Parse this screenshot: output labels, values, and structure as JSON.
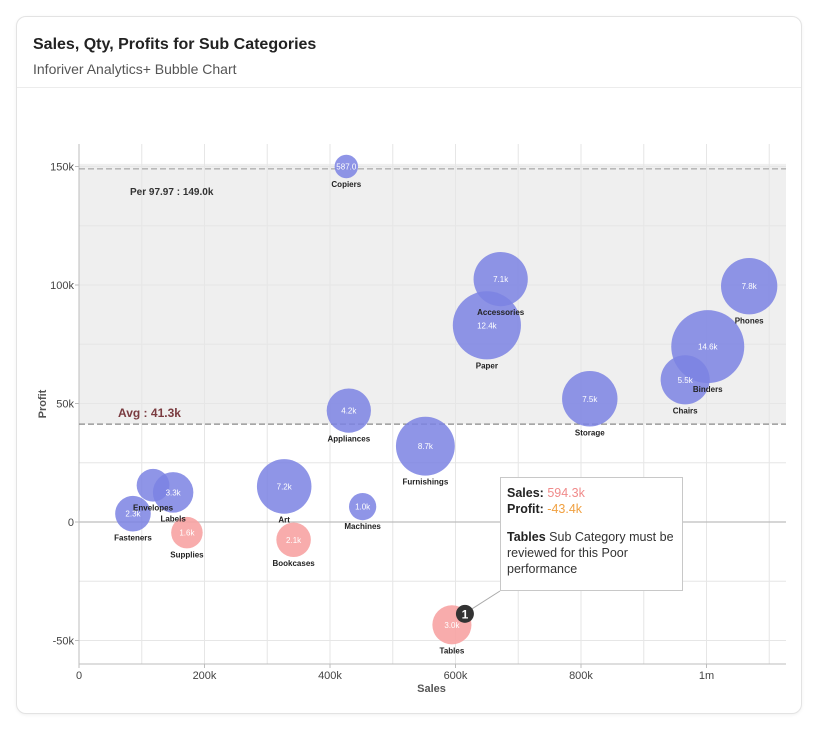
{
  "header": {
    "title": "Sales, Qty, Profits for Sub Categories",
    "subtitle": "Inforiver Analytics+ Bubble Chart"
  },
  "chart_data": {
    "type": "scatter",
    "xlabel": "Sales",
    "ylabel": "Profit",
    "xlim": [
      0,
      1125000
    ],
    "ylim": [
      -60000,
      160000
    ],
    "x_ticks": [
      {
        "value": 0,
        "label": "0"
      },
      {
        "value": 200000,
        "label": "200k"
      },
      {
        "value": 400000,
        "label": "400k"
      },
      {
        "value": 600000,
        "label": "600k"
      },
      {
        "value": 800000,
        "label": "800k"
      },
      {
        "value": 1000000,
        "label": "1m"
      }
    ],
    "y_ticks": [
      {
        "value": -50000,
        "label": "-50k"
      },
      {
        "value": 0,
        "label": "0"
      },
      {
        "value": 50000,
        "label": "50k"
      },
      {
        "value": 100000,
        "label": "100k"
      },
      {
        "value": 150000,
        "label": "150k"
      }
    ],
    "colors": {
      "positive": "#7b82e3",
      "negative": "#f7a3a3",
      "negative_label": "#e0242c",
      "band": "#efefef"
    },
    "points": [
      {
        "name": "Copiers",
        "sales": 426000,
        "profit": 150000,
        "size_label": "587.0",
        "qty": 587
      },
      {
        "name": "Accessories",
        "sales": 672000,
        "profit": 102500,
        "size_label": "7.1k",
        "qty": 7100
      },
      {
        "name": "Phones",
        "sales": 1068000,
        "profit": 99500,
        "size_label": "7.8k",
        "qty": 7800
      },
      {
        "name": "Paper",
        "sales": 650000,
        "profit": 83000,
        "size_label": "12.4k",
        "qty": 12400
      },
      {
        "name": "Binders",
        "sales": 1002000,
        "profit": 74000,
        "size_label": "14.6k",
        "qty": 14600
      },
      {
        "name": "Chairs",
        "sales": 966000,
        "profit": 60000,
        "size_label": "5.5k",
        "qty": 5500
      },
      {
        "name": "Storage",
        "sales": 814000,
        "profit": 52000,
        "size_label": "7.5k",
        "qty": 7500
      },
      {
        "name": "Appliances",
        "sales": 430000,
        "profit": 47000,
        "size_label": "4.2k",
        "qty": 4200
      },
      {
        "name": "Furnishings",
        "sales": 552000,
        "profit": 32000,
        "size_label": "8.7k",
        "qty": 8700
      },
      {
        "name": "Art",
        "sales": 327000,
        "profit": 15000,
        "size_label": "7.2k",
        "qty": 7200
      },
      {
        "name": "Envelopes",
        "sales": 118000,
        "profit": 15500,
        "size_label": "",
        "qty": 1800
      },
      {
        "name": "Labels",
        "sales": 150000,
        "profit": 12500,
        "size_label": "3.3k",
        "qty": 3300
      },
      {
        "name": "Machines",
        "sales": 452000,
        "profit": 6500,
        "size_label": "1.0k",
        "qty": 1000
      },
      {
        "name": "Fasteners",
        "sales": 86000,
        "profit": 3500,
        "size_label": "2.3k",
        "qty": 2300
      },
      {
        "name": "Supplies",
        "sales": 172000,
        "profit": -4500,
        "size_label": "1.6k",
        "qty": 1600
      },
      {
        "name": "Bookcases",
        "sales": 342000,
        "profit": -7500,
        "size_label": "2.1k",
        "qty": 2100
      },
      {
        "name": "Tables",
        "sales": 594300,
        "profit": -43400,
        "size_label": "3.0k",
        "qty": 3000
      }
    ],
    "reference_lines": [
      {
        "label": "Per 97.97 : 149.0k",
        "value": 149000
      },
      {
        "label": "Avg : 41.3k",
        "value": 41300
      }
    ],
    "annotation": {
      "marker": "1",
      "sales_label": "Sales:",
      "sales_value": "594.3k",
      "profit_label": "Profit:",
      "profit_value": "-43.4k",
      "category": "Tables",
      "message": "Sub Category must be reviewed for this Poor performance"
    }
  }
}
